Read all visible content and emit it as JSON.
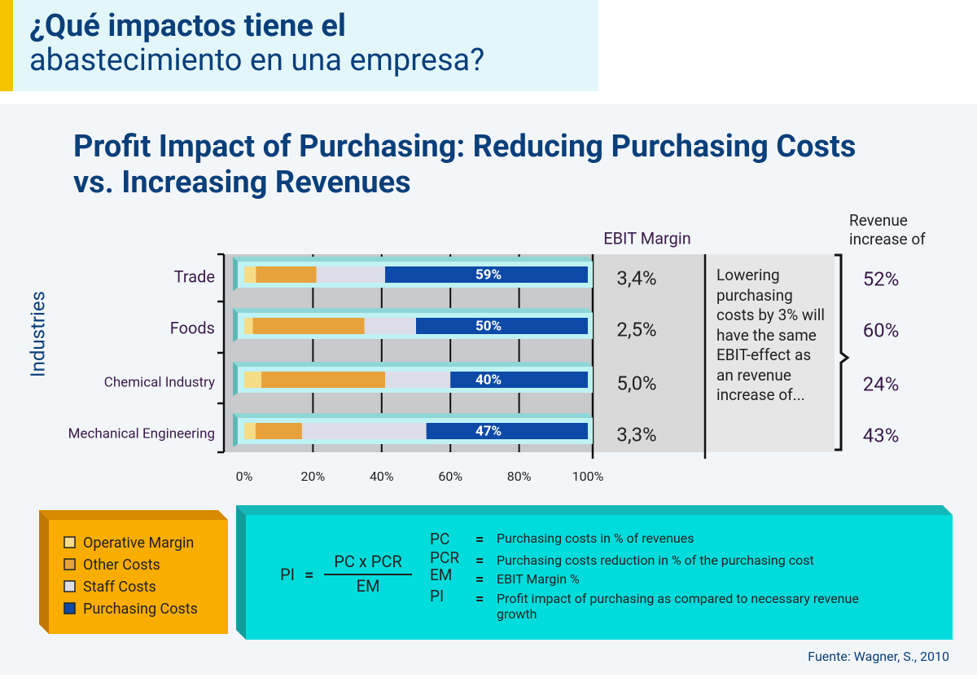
{
  "header": {
    "title_bold": "¿Qué impactos tiene el",
    "title_light": "abastecimiento en una empresa?"
  },
  "chart_data": {
    "type": "stacked_barh",
    "title": "Profit Impact of Purchasing: Reducing Purchasing Costs vs. Increasing Revenues",
    "ylabel": "Industries",
    "categories": [
      "Trade",
      "Foods",
      "Chemical Industry",
      "Mechanical Engineering"
    ],
    "series": [
      {
        "name": "Operative Margin",
        "color": "#f5dc86",
        "values": [
          3.4,
          2.5,
          5.0,
          3.3
        ]
      },
      {
        "name": "Other Costs",
        "color": "#e8a23c",
        "values": [
          17.6,
          32.5,
          36,
          13.5
        ]
      },
      {
        "name": "Staff Costs",
        "color": "#dcdde8",
        "values": [
          20,
          15,
          19,
          36.2
        ]
      },
      {
        "name": "Purchasing Costs",
        "color": "#0d4aa8",
        "values": [
          59,
          50,
          40,
          47
        ],
        "value_labels": [
          "59%",
          "50%",
          "40%",
          "47%"
        ]
      }
    ],
    "xlim": [
      0,
      100
    ],
    "xticks": [
      {
        "value": 0,
        "label": "0%"
      },
      {
        "value": 20,
        "label": "20%"
      },
      {
        "value": 40,
        "label": "40%"
      },
      {
        "value": 60,
        "label": "60%"
      },
      {
        "value": 80,
        "label": "80%"
      },
      {
        "value": 100,
        "label": "100%"
      }
    ],
    "ebit_margin": {
      "label": "EBIT Margin",
      "values": [
        3.4,
        2.5,
        5.0,
        3.3
      ],
      "value_labels": [
        "3,4%",
        "2,5%",
        "5,0%",
        "3,3%"
      ]
    },
    "note": "Lowering purchasing costs by 3% will have the same EBIT-effect as an revenue increase of...",
    "revenue_increase": {
      "label": "Revenue increase of",
      "values": [
        52,
        60,
        24,
        43
      ],
      "value_labels": [
        "52%",
        "60%",
        "24%",
        "43%"
      ]
    }
  },
  "formula": {
    "lhs": "PI",
    "equals": "=",
    "numerator": "PC x PCR",
    "denominator": "EM",
    "definitions": [
      {
        "term": "PC",
        "sign": "=",
        "text": "Purchasing costs in % of revenues"
      },
      {
        "term": "PCR",
        "sign": "=",
        "text": "Purchasing costs reduction in % of the purchasing cost"
      },
      {
        "term": "EM",
        "sign": "=",
        "text": "EBIT Margin %"
      },
      {
        "term": "PI",
        "sign": "=",
        "text": "Profit impact of purchasing as compared to necessary revenue growth"
      }
    ]
  },
  "source": "Fuente: Wagner, S., 2010"
}
